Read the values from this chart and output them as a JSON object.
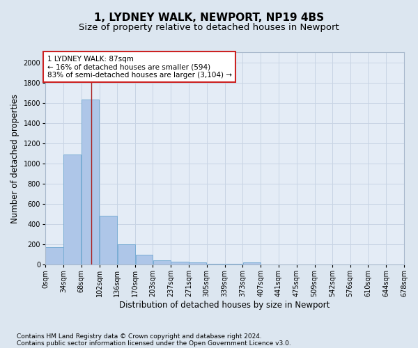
{
  "title": "1, LYDNEY WALK, NEWPORT, NP19 4BS",
  "subtitle": "Size of property relative to detached houses in Newport",
  "xlabel": "Distribution of detached houses by size in Newport",
  "ylabel": "Number of detached properties",
  "footer_line1": "Contains HM Land Registry data © Crown copyright and database right 2024.",
  "footer_line2": "Contains public sector information licensed under the Open Government Licence v3.0.",
  "annotation_line1": "1 LYDNEY WALK: 87sqm",
  "annotation_line2": "← 16% of detached houses are smaller (594)",
  "annotation_line3": "83% of semi-detached houses are larger (3,104) →",
  "property_sqm": 87,
  "bar_left_edges": [
    0,
    34,
    68,
    102,
    136,
    170,
    203,
    237,
    271,
    305,
    339,
    373,
    407,
    441,
    475,
    509,
    542,
    576,
    610,
    644
  ],
  "bar_widths": [
    34,
    34,
    34,
    34,
    34,
    33,
    34,
    34,
    34,
    34,
    34,
    34,
    34,
    34,
    34,
    33,
    34,
    34,
    34,
    34
  ],
  "bar_heights": [
    170,
    1090,
    1630,
    480,
    200,
    100,
    40,
    25,
    20,
    5,
    5,
    20,
    0,
    0,
    0,
    0,
    0,
    0,
    0,
    0
  ],
  "tick_labels": [
    "0sqm",
    "34sqm",
    "68sqm",
    "102sqm",
    "136sqm",
    "170sqm",
    "203sqm",
    "237sqm",
    "271sqm",
    "305sqm",
    "339sqm",
    "373sqm",
    "407sqm",
    "441sqm",
    "475sqm",
    "509sqm",
    "542sqm",
    "576sqm",
    "610sqm",
    "644sqm",
    "678sqm"
  ],
  "bar_color": "#aec6e8",
  "bar_edge_color": "#7aadd4",
  "vline_color": "#aa2222",
  "vline_x": 87,
  "annotation_box_facecolor": "#ffffff",
  "annotation_box_edgecolor": "#cc2222",
  "ylim": [
    0,
    2100
  ],
  "yticks": [
    0,
    200,
    400,
    600,
    800,
    1000,
    1200,
    1400,
    1600,
    1800,
    2000
  ],
  "grid_color": "#c8d4e4",
  "bg_color": "#dce6f0",
  "plot_bg_color": "#e4ecf6",
  "title_fontsize": 11,
  "subtitle_fontsize": 9.5,
  "axis_label_fontsize": 8.5,
  "tick_fontsize": 7,
  "annotation_fontsize": 7.5,
  "footer_fontsize": 6.5
}
